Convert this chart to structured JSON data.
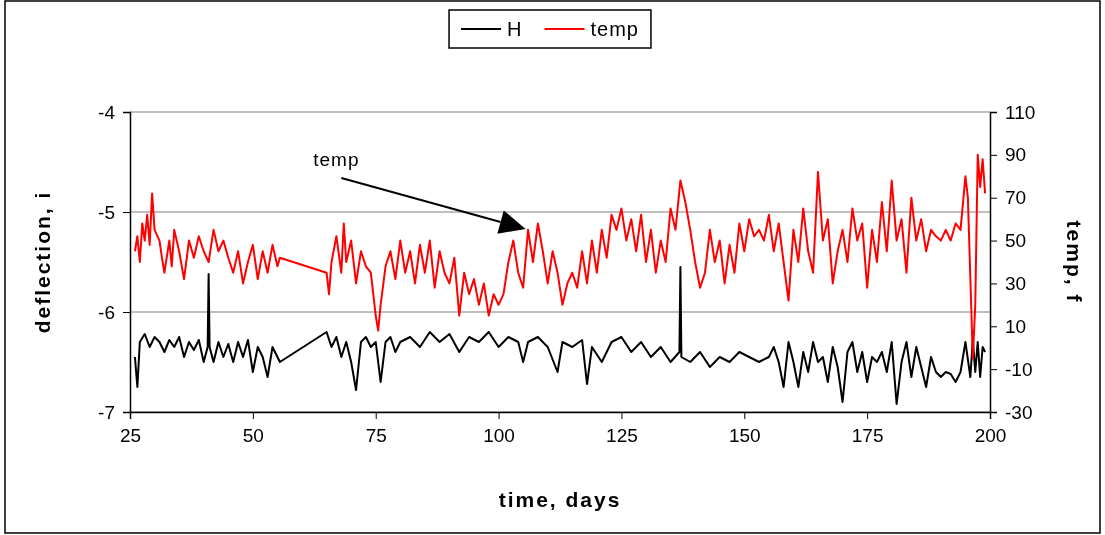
{
  "chart_data": {
    "type": "line",
    "xlabel": "time, days",
    "ylabel": "deflection, i",
    "y2label": "temp, f",
    "xlim": [
      25,
      200
    ],
    "xticks": [
      25,
      50,
      75,
      100,
      125,
      150,
      175,
      200
    ],
    "ylim": [
      -7,
      -4
    ],
    "yticks": [
      -7,
      -6,
      -5,
      -4
    ],
    "y2lim": [
      -30,
      110
    ],
    "y2ticks": [
      -30,
      -10,
      10,
      30,
      50,
      70,
      90,
      110
    ],
    "grid": "y",
    "legend": "top",
    "marker": "none",
    "line_style": "solid",
    "annotations": [
      "temp"
    ],
    "series": [
      {
        "name": "H",
        "color": "#000000",
        "x": [
          26,
          26.5,
          27,
          28,
          29,
          30,
          31,
          32,
          33,
          34,
          35,
          36,
          37,
          38,
          39,
          40,
          40.8,
          41,
          41.2,
          42,
          43,
          44,
          45,
          46,
          47,
          48,
          49,
          50,
          51,
          52,
          53,
          54,
          55,
          55.5,
          65,
          66,
          67,
          68,
          69,
          70,
          71,
          72,
          73,
          74,
          75,
          76,
          77,
          78,
          79,
          80,
          82,
          84,
          86,
          88,
          90,
          92,
          94,
          96,
          98,
          100,
          102,
          104,
          105,
          106,
          108,
          110,
          112,
          113,
          115,
          117,
          118,
          119,
          121,
          123,
          125,
          127,
          129,
          131,
          133,
          135,
          136.8,
          137,
          137.2,
          139,
          141,
          143,
          145,
          147,
          149,
          151,
          153,
          155,
          156,
          157,
          158,
          159,
          160,
          161,
          162,
          163,
          164,
          165,
          166,
          167,
          168,
          169,
          170,
          171,
          172,
          173,
          174,
          175,
          176,
          177,
          178,
          179,
          180,
          181,
          182,
          183,
          184,
          185,
          186,
          187,
          188,
          189,
          190,
          191,
          192,
          193,
          194,
          195,
          196,
          196.5,
          197,
          197.5,
          198,
          198.5,
          199
        ],
        "values": [
          -6.45,
          -6.75,
          -6.3,
          -6.22,
          -6.35,
          -6.25,
          -6.3,
          -6.4,
          -6.28,
          -6.35,
          -6.25,
          -6.45,
          -6.3,
          -6.38,
          -6.28,
          -6.5,
          -6.35,
          -5.62,
          -6.35,
          -6.5,
          -6.3,
          -6.45,
          -6.32,
          -6.5,
          -6.3,
          -6.45,
          -6.28,
          -6.6,
          -6.35,
          -6.45,
          -6.65,
          -6.35,
          -6.45,
          -6.5,
          -6.2,
          -6.35,
          -6.25,
          -6.45,
          -6.3,
          -6.5,
          -6.78,
          -6.3,
          -6.25,
          -6.35,
          -6.3,
          -6.7,
          -6.3,
          -6.25,
          -6.4,
          -6.3,
          -6.25,
          -6.35,
          -6.2,
          -6.3,
          -6.22,
          -6.4,
          -6.25,
          -6.3,
          -6.2,
          -6.35,
          -6.25,
          -6.3,
          -6.5,
          -6.3,
          -6.25,
          -6.35,
          -6.6,
          -6.3,
          -6.35,
          -6.28,
          -6.72,
          -6.35,
          -6.5,
          -6.3,
          -6.25,
          -6.4,
          -6.3,
          -6.45,
          -6.35,
          -6.5,
          -6.4,
          -5.55,
          -6.45,
          -6.5,
          -6.4,
          -6.55,
          -6.45,
          -6.5,
          -6.4,
          -6.45,
          -6.5,
          -6.45,
          -6.35,
          -6.5,
          -6.75,
          -6.3,
          -6.5,
          -6.75,
          -6.4,
          -6.6,
          -6.3,
          -6.5,
          -6.45,
          -6.7,
          -6.35,
          -6.55,
          -6.9,
          -6.4,
          -6.3,
          -6.6,
          -6.4,
          -6.7,
          -6.45,
          -6.5,
          -6.4,
          -6.6,
          -6.3,
          -6.92,
          -6.5,
          -6.3,
          -6.65,
          -6.35,
          -6.55,
          -6.75,
          -6.45,
          -6.6,
          -6.65,
          -6.6,
          -6.62,
          -6.7,
          -6.6,
          -6.3,
          -6.65,
          -6.28,
          -6.6,
          -6.3,
          -6.65,
          -6.35,
          -6.4
        ]
      },
      {
        "name": "temp",
        "color": "#ff0000",
        "axis": "y2",
        "x": [
          26,
          26.5,
          27,
          27.5,
          28,
          28.5,
          29,
          29.5,
          30,
          31,
          31.5,
          32,
          33,
          33.5,
          34,
          35,
          36,
          37,
          38,
          39,
          40,
          41,
          42,
          43,
          44,
          45,
          46,
          47,
          48,
          49,
          50,
          51,
          52,
          53,
          54,
          55,
          55.5,
          65,
          65.5,
          66,
          67,
          68,
          68.5,
          69,
          70,
          71,
          72,
          73,
          74,
          75,
          75.5,
          76,
          77,
          78,
          79,
          80,
          81,
          82,
          83,
          84,
          85,
          86,
          87,
          88,
          89,
          90,
          91,
          92,
          93,
          94,
          95,
          96,
          97,
          98,
          99,
          100,
          101,
          102,
          103,
          104,
          105,
          106,
          107,
          108,
          109,
          110,
          111,
          112,
          113,
          114,
          115,
          116,
          117,
          118,
          119,
          120,
          121,
          122,
          123,
          124,
          125,
          126,
          127,
          128,
          129,
          130,
          131,
          132,
          133,
          134,
          135,
          136,
          137,
          138,
          139,
          140,
          141,
          142,
          143,
          144,
          145,
          146,
          147,
          148,
          149,
          150,
          151,
          152,
          153,
          154,
          155,
          156,
          157,
          158,
          159,
          160,
          161,
          162,
          163,
          164,
          165,
          166,
          167,
          168,
          169,
          170,
          171,
          172,
          173,
          174,
          175,
          176,
          177,
          178,
          179,
          180,
          181,
          182,
          183,
          184,
          185,
          186,
          187,
          188,
          189,
          190,
          191,
          192,
          193,
          194,
          195,
          195.5,
          196.5,
          197,
          197.5,
          198,
          198.5,
          199
        ],
        "values": [
          45,
          52,
          40,
          58,
          50,
          62,
          48,
          72,
          55,
          50,
          42,
          35,
          50,
          38,
          55,
          45,
          32,
          50,
          42,
          52,
          45,
          40,
          55,
          45,
          50,
          42,
          35,
          45,
          30,
          40,
          48,
          32,
          45,
          35,
          48,
          38,
          42,
          35,
          25,
          40,
          52,
          35,
          58,
          40,
          50,
          30,
          45,
          38,
          35,
          15,
          8,
          20,
          38,
          45,
          32,
          50,
          35,
          45,
          30,
          48,
          35,
          50,
          28,
          45,
          35,
          30,
          42,
          15,
          35,
          25,
          32,
          20,
          30,
          15,
          25,
          20,
          25,
          40,
          50,
          35,
          28,
          55,
          40,
          58,
          45,
          30,
          45,
          35,
          20,
          30,
          35,
          28,
          45,
          30,
          50,
          35,
          55,
          42,
          62,
          55,
          65,
          50,
          60,
          45,
          62,
          40,
          55,
          35,
          50,
          40,
          65,
          55,
          78,
          68,
          55,
          40,
          28,
          35,
          55,
          40,
          50,
          30,
          48,
          35,
          58,
          45,
          60,
          52,
          55,
          50,
          62,
          45,
          58,
          40,
          22,
          55,
          40,
          65,
          45,
          35,
          82,
          50,
          60,
          30,
          45,
          55,
          40,
          65,
          50,
          58,
          28,
          55,
          40,
          68,
          45,
          78,
          50,
          60,
          35,
          70,
          50,
          60,
          45,
          55,
          52,
          50,
          55,
          50,
          58,
          55,
          80,
          70,
          -5,
          20,
          90,
          75,
          88,
          72
        ]
      }
    ]
  }
}
